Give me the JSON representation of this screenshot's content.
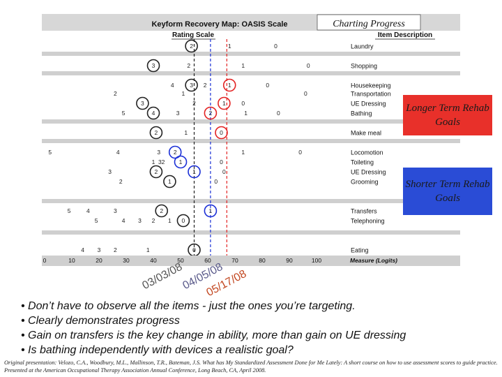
{
  "map_title": "Keyform Recovery Map: OASIS Scale",
  "charting_progress": "Charting Progress",
  "rating_scale_header": "Rating Scale",
  "item_description_header": "Item Description",
  "measure_label": "Measure (Logits)",
  "longer_term_goals": "Longer Term Rehab Goals",
  "shorter_term_goals": "Shorter Term Rehab Goals",
  "date_labels": [
    "03/03/08",
    "04/05/08",
    "05/17/08"
  ],
  "colors": {
    "black_line": "#222222",
    "blue": "#1a2fd6",
    "red": "#e32222",
    "stripe": "#cfcfcf"
  },
  "bullets": [
    "Don’t have to observe all the items - just the ones you’re targeting.",
    "Clearly demonstrates progress",
    "Gain on transfers is the key change in ability, more than gain on UE dressing",
    "Is bathing independently with devices a realistic goal?"
  ],
  "citation": "Original presentation: Velozo, C.A., Woodbury, M.L., Mallinson, T.R., Bateman, J.S. What has My Standardized Assessment Done for Me Lately: A short course on how to use assessment scores to guide practice. Presented at the American Occupational Therapy Association Annual Conference, Long Beach, CA, April 2008.",
  "chart_data": {
    "type": "keyform",
    "x_ticks": [
      0,
      10,
      20,
      30,
      40,
      50,
      60,
      70,
      80,
      90,
      100
    ],
    "xlim": [
      0,
      100
    ],
    "measures": [
      {
        "date": "03/03/08",
        "logit": 55,
        "color": "black"
      },
      {
        "date": "04/05/08",
        "logit": 61,
        "color": "blue"
      },
      {
        "date": "05/17/08",
        "logit": 67,
        "color": "red"
      }
    ],
    "items": [
      {
        "name": "Laundry",
        "ratings": [
          {
            "v": "2",
            "x": 54,
            "c": "black"
          },
          {
            "v": "1",
            "x": 68,
            "c": ""
          },
          {
            "v": "0",
            "x": 85,
            "c": ""
          }
        ]
      },
      {
        "name": "Shopping",
        "ratings": [
          {
            "v": "3",
            "x": 40,
            "c": "black"
          },
          {
            "v": "2",
            "x": 53,
            "c": ""
          },
          {
            "v": "1",
            "x": 73,
            "c": ""
          },
          {
            "v": "0",
            "x": 97,
            "c": ""
          }
        ]
      },
      {
        "name": "Housekeeping",
        "ratings": [
          {
            "v": "4",
            "x": 47,
            "c": ""
          },
          {
            "v": "3",
            "x": 54,
            "c": "black"
          },
          {
            "v": "2",
            "x": 59,
            "c": ""
          },
          {
            "v": "1",
            "x": 68,
            "c": "red"
          },
          {
            "v": "0",
            "x": 82,
            "c": ""
          }
        ]
      },
      {
        "name": "Transportation",
        "ratings": [
          {
            "v": "2",
            "x": 26,
            "c": ""
          },
          {
            "v": "1",
            "x": 51,
            "c": ""
          },
          {
            "v": "0",
            "x": 96,
            "c": ""
          }
        ]
      },
      {
        "name": "UE Dressing",
        "ratings": [
          {
            "v": "3",
            "x": 36,
            "c": "black"
          },
          {
            "v": "2",
            "x": 55,
            "c": ""
          },
          {
            "v": "1",
            "x": 66,
            "c": "red"
          },
          {
            "v": "0",
            "x": 73,
            "c": ""
          }
        ]
      },
      {
        "name": "Bathing",
        "ratings": [
          {
            "v": "5",
            "x": 29,
            "c": ""
          },
          {
            "v": "4",
            "x": 40,
            "c": "black"
          },
          {
            "v": "3",
            "x": 49,
            "c": ""
          },
          {
            "v": "2",
            "x": 61,
            "c": "red"
          },
          {
            "v": "1",
            "x": 74,
            "c": ""
          },
          {
            "v": "0",
            "x": 86,
            "c": ""
          }
        ]
      },
      {
        "name": "Make meal",
        "ratings": [
          {
            "v": "2",
            "x": 41,
            "c": "black"
          },
          {
            "v": "1",
            "x": 52,
            "c": ""
          },
          {
            "v": "0",
            "x": 65,
            "c": "red"
          }
        ]
      },
      {
        "name": "Locomotion",
        "ratings": [
          {
            "v": "5",
            "x": 2,
            "c": ""
          },
          {
            "v": "4",
            "x": 27,
            "c": ""
          },
          {
            "v": "3",
            "x": 42,
            "c": ""
          },
          {
            "v": "2",
            "x": 48,
            "c": "blue"
          },
          {
            "v": "1",
            "x": 73,
            "c": ""
          },
          {
            "v": "0",
            "x": 94,
            "c": ""
          }
        ]
      },
      {
        "name": "Toileting",
        "ratings": [
          {
            "v": "1",
            "x": 40,
            "c": ""
          },
          {
            "v": "32",
            "x": 43,
            "c": ""
          },
          {
            "v": "1",
            "x": 50,
            "c": "blue"
          },
          {
            "v": "0",
            "x": 65,
            "c": ""
          }
        ]
      },
      {
        "name": "UE Dressing",
        "ratings": [
          {
            "v": "3",
            "x": 24,
            "c": ""
          },
          {
            "v": "2",
            "x": 41,
            "c": "black"
          },
          {
            "v": "1",
            "x": 55,
            "c": "blue"
          },
          {
            "v": "0",
            "x": 66,
            "c": ""
          }
        ]
      },
      {
        "name": "Grooming",
        "ratings": [
          {
            "v": "2",
            "x": 28,
            "c": ""
          },
          {
            "v": "1",
            "x": 46,
            "c": "black"
          },
          {
            "v": "0",
            "x": 63,
            "c": ""
          }
        ]
      },
      {
        "name": "Transfers",
        "ratings": [
          {
            "v": "5",
            "x": 9,
            "c": ""
          },
          {
            "v": "4",
            "x": 16,
            "c": ""
          },
          {
            "v": "3",
            "x": 26,
            "c": ""
          },
          {
            "v": "2",
            "x": 43,
            "c": "black"
          },
          {
            "v": "1",
            "x": 61,
            "c": "blue"
          }
        ]
      },
      {
        "name": "Telephoning",
        "ratings": [
          {
            "v": "5",
            "x": 19,
            "c": ""
          },
          {
            "v": "4",
            "x": 29,
            "c": ""
          },
          {
            "v": "3",
            "x": 35,
            "c": ""
          },
          {
            "v": "2",
            "x": 40,
            "c": ""
          },
          {
            "v": "1",
            "x": 46,
            "c": ""
          },
          {
            "v": "0",
            "x": 51,
            "c": "black"
          }
        ]
      },
      {
        "name": "Eating",
        "ratings": [
          {
            "v": "4",
            "x": 14,
            "c": ""
          },
          {
            "v": "3",
            "x": 20,
            "c": ""
          },
          {
            "v": "2",
            "x": 26,
            "c": ""
          },
          {
            "v": "1",
            "x": 38,
            "c": ""
          },
          {
            "v": "0",
            "x": 55,
            "c": "black"
          }
        ]
      }
    ]
  }
}
